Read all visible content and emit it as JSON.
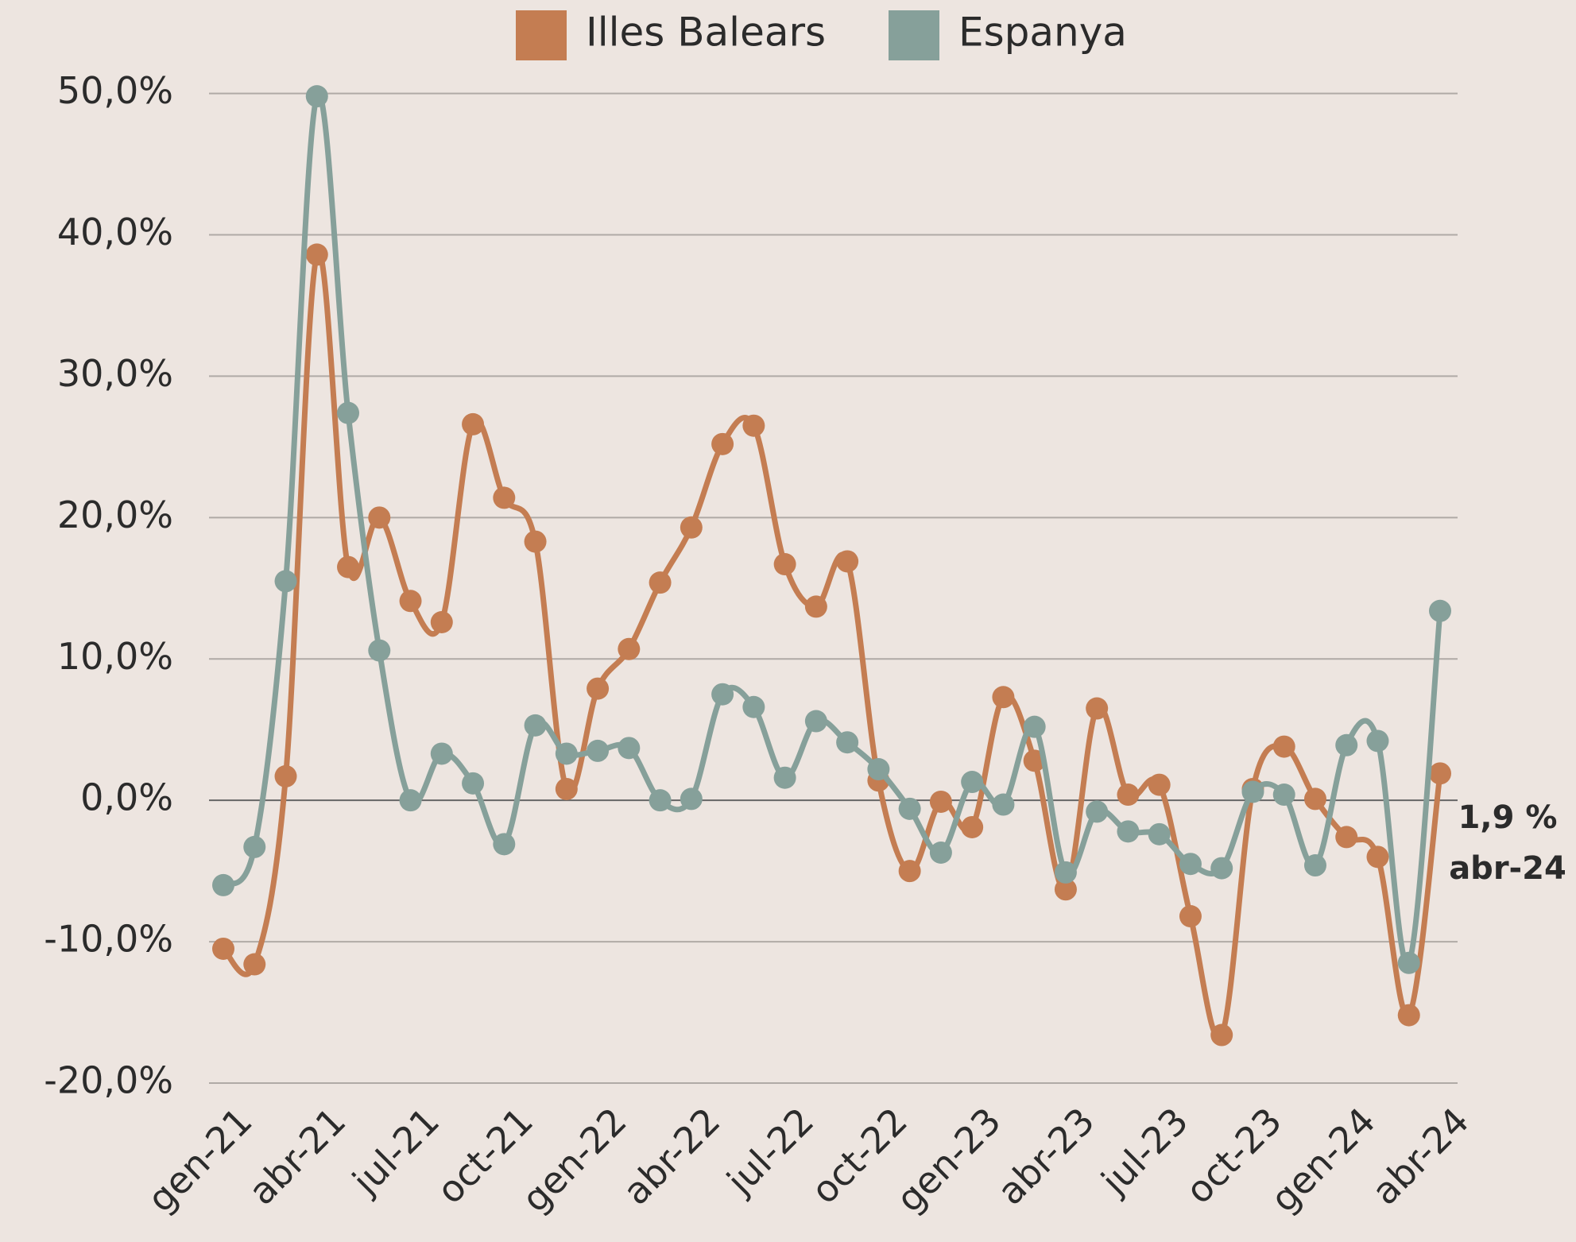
{
  "chart_data": {
    "type": "line",
    "categories": [
      "gen-21",
      null,
      null,
      "abr-21",
      null,
      null,
      "jul-21",
      null,
      null,
      "oct-21",
      null,
      null,
      "gen-22",
      null,
      null,
      "abr-22",
      null,
      null,
      "jul-22",
      null,
      null,
      "oct-22",
      null,
      null,
      "gen-23",
      null,
      null,
      "abr-23",
      null,
      null,
      "jul-23",
      null,
      null,
      "oct-23",
      null,
      null,
      "gen-24",
      null,
      null,
      "abr-24"
    ],
    "series": [
      {
        "name": "Illes Balears",
        "color": "#c47d52",
        "values": [
          -10.5,
          -11.6,
          1.7,
          38.6,
          16.5,
          20.0,
          14.1,
          12.6,
          26.6,
          21.4,
          18.3,
          0.8,
          7.9,
          10.7,
          15.4,
          19.3,
          25.2,
          26.5,
          16.7,
          13.7,
          16.9,
          1.4,
          -5.0,
          -0.1,
          -1.9,
          7.3,
          2.8,
          -6.3,
          6.5,
          0.4,
          1.1,
          -8.2,
          -16.6,
          0.8,
          3.8,
          0.1,
          -2.6,
          -4.0,
          -15.2,
          1.9
        ]
      },
      {
        "name": "Espanya",
        "color": "#86a09a",
        "values": [
          -6.0,
          -3.3,
          15.5,
          49.8,
          27.4,
          10.6,
          0.0,
          3.3,
          1.2,
          -3.1,
          5.3,
          3.3,
          3.5,
          3.7,
          0.0,
          0.1,
          7.5,
          6.6,
          1.6,
          5.6,
          4.1,
          2.2,
          -0.6,
          -3.7,
          1.3,
          -0.3,
          5.2,
          -5.1,
          -0.8,
          -2.2,
          -2.4,
          -4.5,
          -4.8,
          0.6,
          0.4,
          -4.6,
          3.9,
          4.2,
          -11.5,
          13.4
        ]
      }
    ],
    "ylim": [
      -20,
      50
    ],
    "yticks": [
      {
        "value": -20,
        "label": "-20,0%"
      },
      {
        "value": -10,
        "label": "-10,0%"
      },
      {
        "value": 0,
        "label": "0,0%"
      },
      {
        "value": 10,
        "label": "10,0%"
      },
      {
        "value": 20,
        "label": "20,0%"
      },
      {
        "value": 30,
        "label": "30,0%"
      },
      {
        "value": 40,
        "label": "40,0%"
      },
      {
        "value": 50,
        "label": "50,0%"
      }
    ],
    "grid": true,
    "legend": "top",
    "annotations": [
      "1,9 %",
      "abr-24"
    ]
  }
}
